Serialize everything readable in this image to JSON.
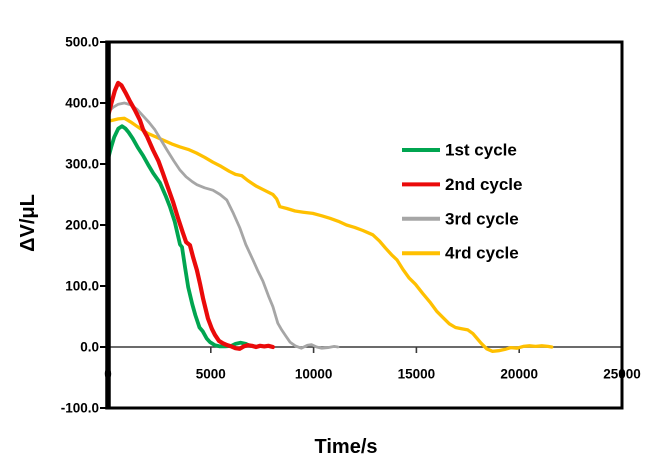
{
  "chart_data": {
    "type": "line",
    "title": "",
    "xlabel": "Time/s",
    "ylabel": "ΔV/μL",
    "xlim": [
      0,
      25000
    ],
    "ylim": [
      -100,
      500
    ],
    "grid": false,
    "legend_position": "inside-right-center",
    "x_ticks": [
      {
        "value": 0,
        "label": "0"
      },
      {
        "value": 5000,
        "label": "5000"
      },
      {
        "value": 10000,
        "label": "10000"
      },
      {
        "value": 15000,
        "label": "15000"
      },
      {
        "value": 20000,
        "label": "20000"
      },
      {
        "value": 25000,
        "label": "25000"
      }
    ],
    "y_ticks": [
      {
        "value": 500,
        "label": "500.0"
      },
      {
        "value": 400,
        "label": "400.0"
      },
      {
        "value": 300,
        "label": "300.0"
      },
      {
        "value": 200,
        "label": "200.0"
      },
      {
        "value": 100,
        "label": "100.0"
      },
      {
        "value": 0,
        "label": "0.0"
      },
      {
        "value": -100,
        "label": "-100.0"
      }
    ],
    "series": [
      {
        "name": "1st cycle",
        "color": "#00A550",
        "points": [
          [
            0,
            308
          ],
          [
            150,
            327
          ],
          [
            300,
            344
          ],
          [
            500,
            358
          ],
          [
            680,
            362
          ],
          [
            850,
            358
          ],
          [
            1000,
            352
          ],
          [
            1200,
            342
          ],
          [
            1450,
            327
          ],
          [
            1700,
            314
          ],
          [
            1950,
            299
          ],
          [
            2200,
            285
          ],
          [
            2530,
            269
          ],
          [
            2800,
            248
          ],
          [
            3010,
            230
          ],
          [
            3250,
            205
          ],
          [
            3500,
            168
          ],
          [
            3600,
            164
          ],
          [
            3750,
            130
          ],
          [
            3900,
            98
          ],
          [
            4100,
            70
          ],
          [
            4250,
            52
          ],
          [
            4450,
            32
          ],
          [
            4600,
            26
          ],
          [
            4800,
            14
          ],
          [
            4960,
            8
          ],
          [
            5200,
            3
          ],
          [
            5440,
            1
          ],
          [
            5700,
            1
          ],
          [
            6000,
            2
          ],
          [
            6200,
            5
          ],
          [
            6450,
            7
          ],
          [
            6700,
            5
          ],
          [
            6900,
            2
          ],
          [
            7150,
            1
          ]
        ]
      },
      {
        "name": "2nd cycle",
        "color": "#EA0A0A",
        "points": [
          [
            0,
            378
          ],
          [
            150,
            398
          ],
          [
            330,
            420
          ],
          [
            490,
            433
          ],
          [
            650,
            429
          ],
          [
            850,
            417
          ],
          [
            1050,
            404
          ],
          [
            1300,
            389
          ],
          [
            1550,
            372
          ],
          [
            1700,
            357
          ],
          [
            1900,
            345
          ],
          [
            2190,
            323
          ],
          [
            2450,
            305
          ],
          [
            2670,
            285
          ],
          [
            2900,
            263
          ],
          [
            3160,
            238
          ],
          [
            3400,
            212
          ],
          [
            3645,
            187
          ],
          [
            3800,
            172
          ],
          [
            3985,
            167
          ],
          [
            4150,
            146
          ],
          [
            4325,
            126
          ],
          [
            4480,
            103
          ],
          [
            4620,
            80
          ],
          [
            4860,
            47
          ],
          [
            5050,
            30
          ],
          [
            5200,
            20
          ],
          [
            5400,
            10
          ],
          [
            5590,
            6
          ],
          [
            5800,
            3
          ],
          [
            6000,
            1
          ],
          [
            6200,
            -2
          ],
          [
            6400,
            -3
          ],
          [
            6600,
            1
          ],
          [
            6800,
            3
          ],
          [
            7000,
            2
          ],
          [
            7200,
            0
          ],
          [
            7400,
            2
          ],
          [
            7600,
            1
          ],
          [
            7800,
            2
          ],
          [
            8020,
            0
          ]
        ]
      },
      {
        "name": "3rd cycle",
        "color": "#A6A6A6",
        "points": [
          [
            0,
            385
          ],
          [
            250,
            393
          ],
          [
            500,
            398
          ],
          [
            800,
            400
          ],
          [
            1100,
            397
          ],
          [
            1400,
            390
          ],
          [
            1700,
            379
          ],
          [
            2000,
            368
          ],
          [
            2280,
            356
          ],
          [
            2570,
            340
          ],
          [
            2870,
            323
          ],
          [
            3200,
            305
          ],
          [
            3500,
            290
          ],
          [
            3800,
            279
          ],
          [
            4100,
            271
          ],
          [
            4325,
            266
          ],
          [
            4700,
            261
          ],
          [
            5100,
            257
          ],
          [
            5450,
            250
          ],
          [
            5780,
            241
          ],
          [
            6100,
            219
          ],
          [
            6415,
            195
          ],
          [
            6700,
            168
          ],
          [
            7050,
            143
          ],
          [
            7300,
            124
          ],
          [
            7535,
            108
          ],
          [
            7800,
            84
          ],
          [
            8020,
            66
          ],
          [
            8260,
            39
          ],
          [
            8450,
            28
          ],
          [
            8650,
            18
          ],
          [
            8850,
            8
          ],
          [
            9100,
            2
          ],
          [
            9400,
            -2
          ],
          [
            9700,
            3
          ],
          [
            9900,
            4
          ],
          [
            10150,
            0
          ],
          [
            10400,
            -2
          ],
          [
            10700,
            -1
          ],
          [
            11000,
            1
          ],
          [
            11180,
            0
          ]
        ]
      },
      {
        "name": "4rd cycle",
        "color": "#FFC000",
        "points": [
          [
            0,
            370
          ],
          [
            250,
            372
          ],
          [
            500,
            374
          ],
          [
            800,
            375
          ],
          [
            1100,
            369
          ],
          [
            1400,
            362
          ],
          [
            1700,
            355
          ],
          [
            1945,
            350
          ],
          [
            2300,
            345
          ],
          [
            2700,
            339
          ],
          [
            3100,
            333
          ],
          [
            3500,
            328
          ],
          [
            3900,
            324
          ],
          [
            4300,
            318
          ],
          [
            4700,
            311
          ],
          [
            5100,
            303
          ],
          [
            5500,
            296
          ],
          [
            5900,
            288
          ],
          [
            6200,
            283
          ],
          [
            6500,
            281
          ],
          [
            6800,
            273
          ],
          [
            7200,
            264
          ],
          [
            7600,
            257
          ],
          [
            8020,
            250
          ],
          [
            8200,
            243
          ],
          [
            8360,
            230
          ],
          [
            8700,
            227
          ],
          [
            9100,
            223
          ],
          [
            9500,
            221
          ],
          [
            9960,
            219
          ],
          [
            10400,
            215
          ],
          [
            10800,
            211
          ],
          [
            11200,
            206
          ],
          [
            11600,
            200
          ],
          [
            12000,
            196
          ],
          [
            12400,
            191
          ],
          [
            12880,
            184
          ],
          [
            13200,
            174
          ],
          [
            13500,
            162
          ],
          [
            13800,
            151
          ],
          [
            14050,
            143
          ],
          [
            14350,
            127
          ],
          [
            14650,
            113
          ],
          [
            14950,
            103
          ],
          [
            15300,
            88
          ],
          [
            15650,
            74
          ],
          [
            16000,
            58
          ],
          [
            16300,
            48
          ],
          [
            16600,
            38
          ],
          [
            16900,
            32
          ],
          [
            17200,
            30
          ],
          [
            17500,
            28
          ],
          [
            17750,
            22
          ],
          [
            17950,
            14
          ],
          [
            18150,
            6
          ],
          [
            18420,
            -3
          ],
          [
            18700,
            -7
          ],
          [
            19000,
            -6
          ],
          [
            19300,
            -4
          ],
          [
            19600,
            -1
          ],
          [
            19900,
            -2
          ],
          [
            20200,
            1
          ],
          [
            20500,
            2
          ],
          [
            20800,
            1
          ],
          [
            21100,
            2
          ],
          [
            21400,
            1
          ],
          [
            21580,
            0
          ]
        ]
      }
    ]
  },
  "colors": {
    "axis_frame": "#000000",
    "zero_line": "#3a3a3a",
    "tick": "#000000",
    "background": "#ffffff",
    "text": "#000000"
  }
}
